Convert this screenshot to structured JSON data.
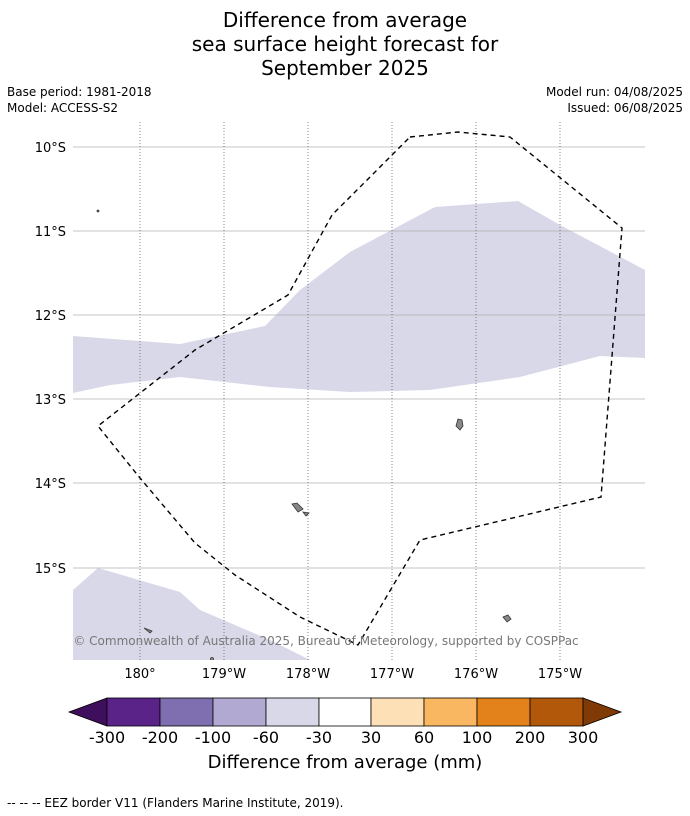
{
  "title_lines": [
    "Difference from average",
    "sea surface height forecast for",
    "September 2025"
  ],
  "meta": {
    "base_period": "Base period: 1981-2018",
    "model": "Model: ACCESS-S2",
    "model_run": "Model run: 04/08/2025",
    "issued": "Issued: 06/08/2025"
  },
  "map": {
    "latitude_labels": [
      "10°S",
      "11°S",
      "12°S",
      "13°S",
      "14°S",
      "15°S"
    ],
    "longitude_labels": [
      "180°",
      "179°W",
      "178°W",
      "177°W",
      "176°W",
      "175°W"
    ],
    "copyright": "© Commonwealth of Australia 2025, Bureau of Meteorology, supported by COSPPac",
    "anomaly_color": "#d8d8e8",
    "land_color": "#888888"
  },
  "colorbar": {
    "ticks": [
      "-300",
      "-200",
      "-100",
      "-60",
      "-30",
      "30",
      "60",
      "100",
      "200",
      "300"
    ],
    "colors": [
      "#3f0f5e",
      "#5a2388",
      "#7f6fb0",
      "#b1a9d2",
      "#d8d8e8",
      "#ffffff",
      "#fde0b6",
      "#fab762",
      "#e3821b",
      "#b2580a",
      "#7f3a06"
    ],
    "label": "Difference from average (mm)"
  },
  "footer": "--  --  -- EEZ border V11 (Flanders Marine Institute, 2019)."
}
